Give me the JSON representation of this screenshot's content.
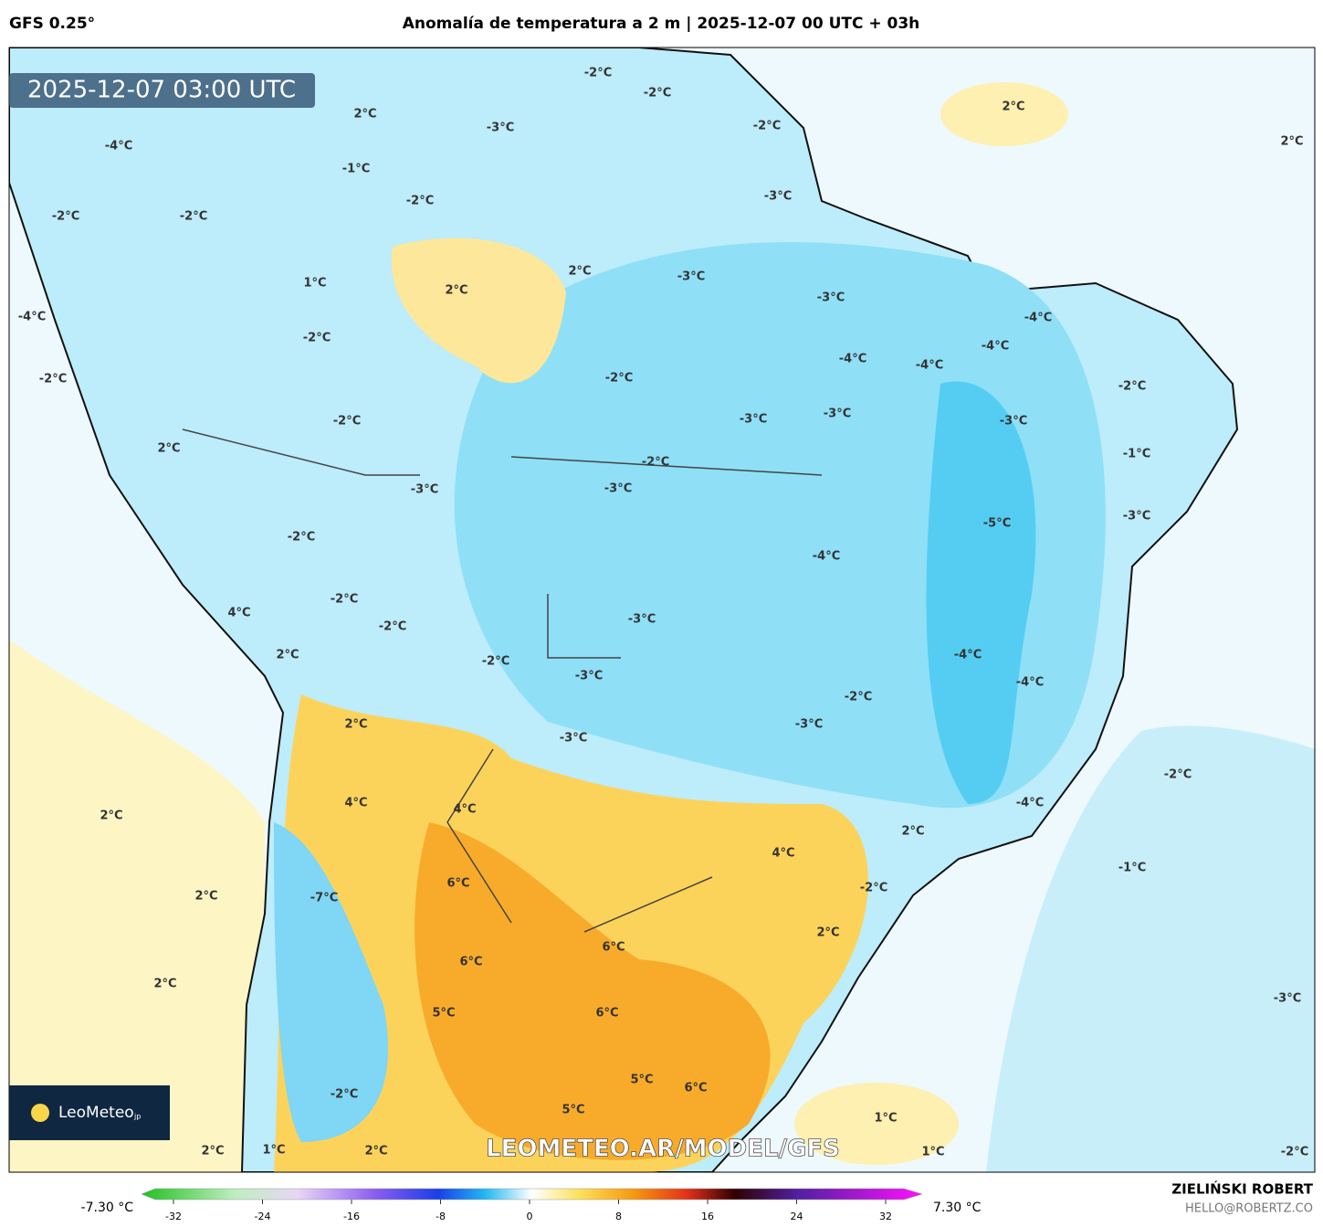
{
  "header": {
    "model": "GFS 0.25°",
    "title": "Anomalía de temperatura a 2 m | 2025-12-07 00 UTC + 03h"
  },
  "map": {
    "timestamp": "2025-12-07 03:00 UTC",
    "logo": "LeoMeteo",
    "logo_suffix": "jp",
    "watermark": "LEOMETEO.AR/MODEL/GFS",
    "contour_labels": [
      "2°C",
      "2°C",
      "-2°C",
      "-2°C",
      "-3°C",
      "2°C",
      "-4°C",
      "-1°C",
      "-2°C",
      "-2°C",
      "-3°C",
      "-2°C",
      "-2°C",
      "1°C",
      "2°C",
      "2°C",
      "-3°C",
      "-3°C",
      "-4°C",
      "-4°C",
      "-4°C",
      "-4°C",
      "-2°C",
      "-4°C",
      "-2°C",
      "-2°C",
      "-2°C",
      "-2°C",
      "-3°C",
      "-3°C",
      "-3°C",
      "2°C",
      "-2°C",
      "-1°C",
      "-3°C",
      "-3°C",
      "-5°C",
      "-3°C",
      "-2°C",
      "-4°C",
      "-2°C",
      "4°C",
      "-3°C",
      "-2°C",
      "2°C",
      "-4°C",
      "-2°C",
      "-3°C",
      "-4°C",
      "-2°C",
      "2°C",
      "-3°C",
      "-3°C",
      "-2°C",
      "4°C",
      "4°C",
      "-4°C",
      "2°C",
      "2°C",
      "4°C",
      "-1°C",
      "6°C",
      "-2°C",
      "-7°C",
      "2°C",
      "6°C",
      "2°C",
      "6°C",
      "2°C",
      "5°C",
      "6°C",
      "-3°C",
      "5°C",
      "6°C",
      "-2°C",
      "5°C",
      "1°C",
      "2°C",
      "1°C",
      "2°C",
      "1°C",
      "-2°C"
    ]
  },
  "colorbar": {
    "min_label": "-7.30 °C",
    "max_label": "7.30 °C",
    "range": [
      -32,
      32
    ],
    "ticks": [
      -32,
      -24,
      -16,
      -8,
      0,
      8,
      16,
      24,
      32
    ]
  },
  "footer": {
    "author": "ZIELIŃSKI ROBERT",
    "contact": "HELLO@ROBERTZ.CO"
  }
}
